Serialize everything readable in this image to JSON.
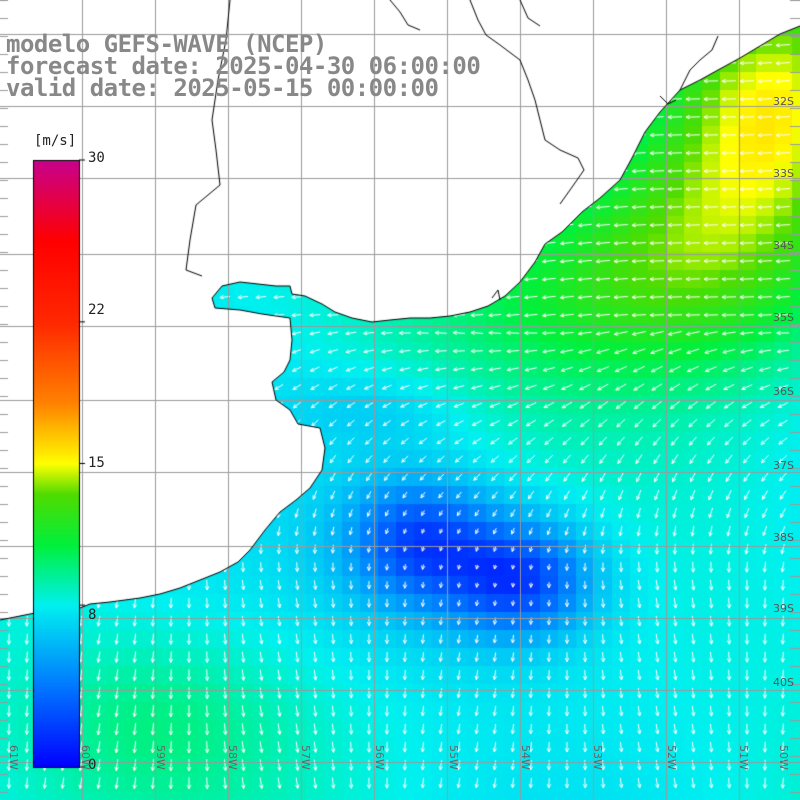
{
  "title": {
    "line1": "modelo GEFS-WAVE (NCEP)",
    "line2": "forecast date: 2025-04-30 06:00:00",
    "line3": "valid date: 2025-05-15 00:00:00"
  },
  "colorbar": {
    "unit": "[m/s]",
    "ticks": [
      "30",
      "22",
      "15",
      "8",
      "0"
    ],
    "tick_values": [
      30,
      22,
      15,
      8,
      0
    ],
    "min": 0,
    "max": 30
  },
  "lat_labels": [
    "32S",
    "33S",
    "34S",
    "35S",
    "36S",
    "37S",
    "38S",
    "39S",
    "40S"
  ],
  "lon_labels": [
    "61W",
    "60W",
    "59W",
    "58W",
    "57W",
    "56W",
    "55W",
    "54W",
    "53W",
    "52W",
    "51W",
    "50W"
  ],
  "colors": {
    "land": "#ffffff",
    "grid": "#9a9a9a",
    "coast": "#000000",
    "arrow": "#ffffff",
    "title": "#888888"
  },
  "map_type": "wind speed field with direction arrows"
}
